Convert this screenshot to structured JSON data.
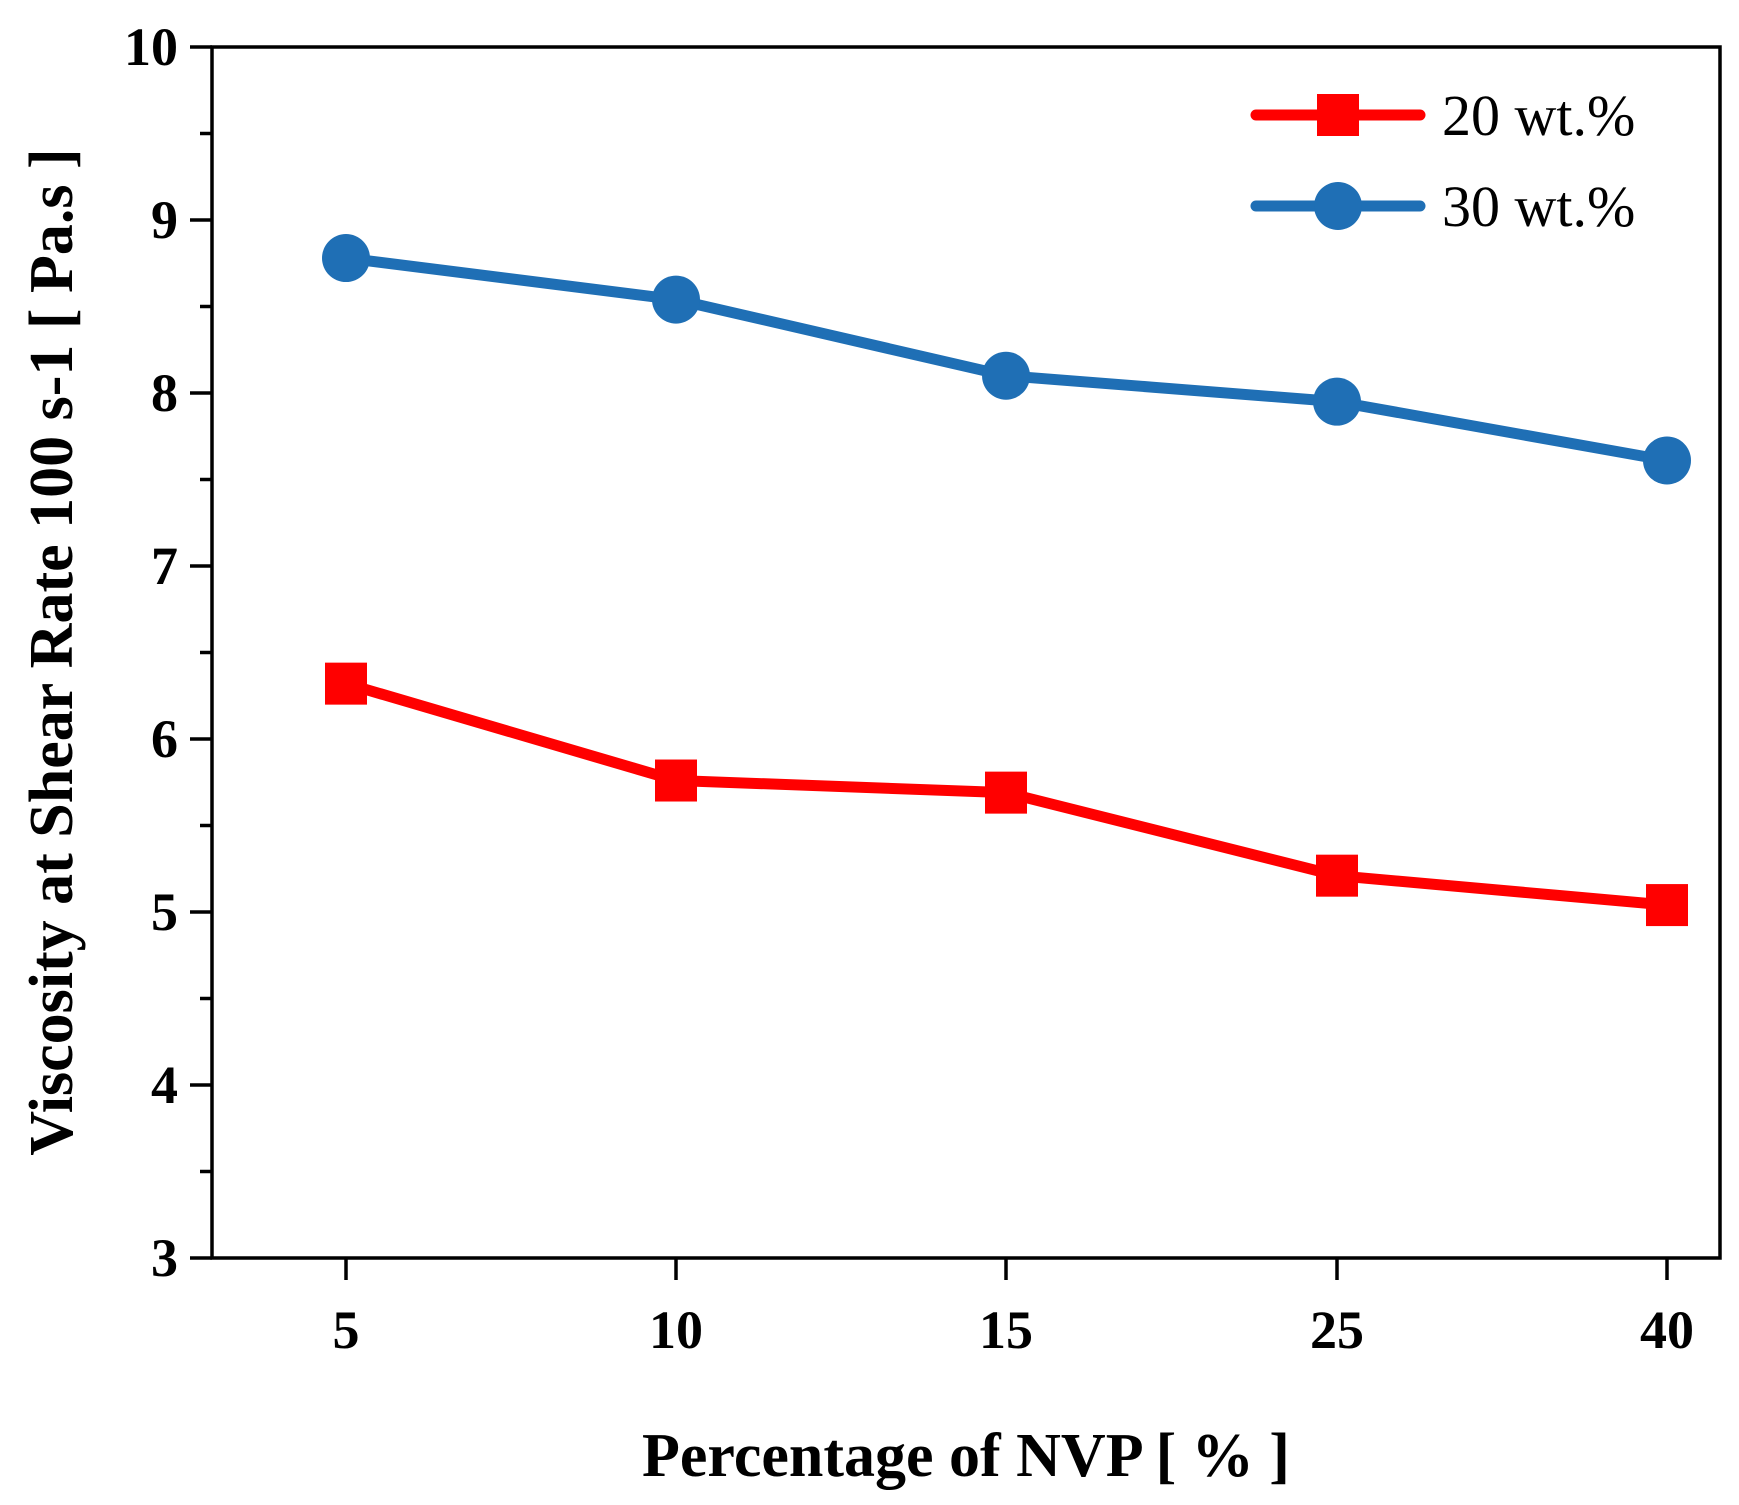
{
  "chart_data": {
    "type": "line",
    "xlabel": "Percentage of NVP [ % ]",
    "ylabel": "Viscosity at Shear Rate 100 s-1 [ Pa.s ]",
    "categories": [
      "5",
      "10",
      "15",
      "25",
      "40"
    ],
    "ylim": [
      3,
      10
    ],
    "yticks": [
      3,
      4,
      5,
      6,
      7,
      8,
      9,
      10
    ],
    "grid": false,
    "legend_position": "top-right",
    "series": [
      {
        "name": "20 wt.%",
        "values": [
          6.32,
          5.76,
          5.69,
          5.21,
          5.04
        ],
        "color": "#ff0000",
        "marker": "square"
      },
      {
        "name": "30 wt.%",
        "values": [
          8.78,
          8.54,
          8.1,
          7.95,
          7.61
        ],
        "color": "#1f6fb5",
        "marker": "circle"
      }
    ]
  }
}
